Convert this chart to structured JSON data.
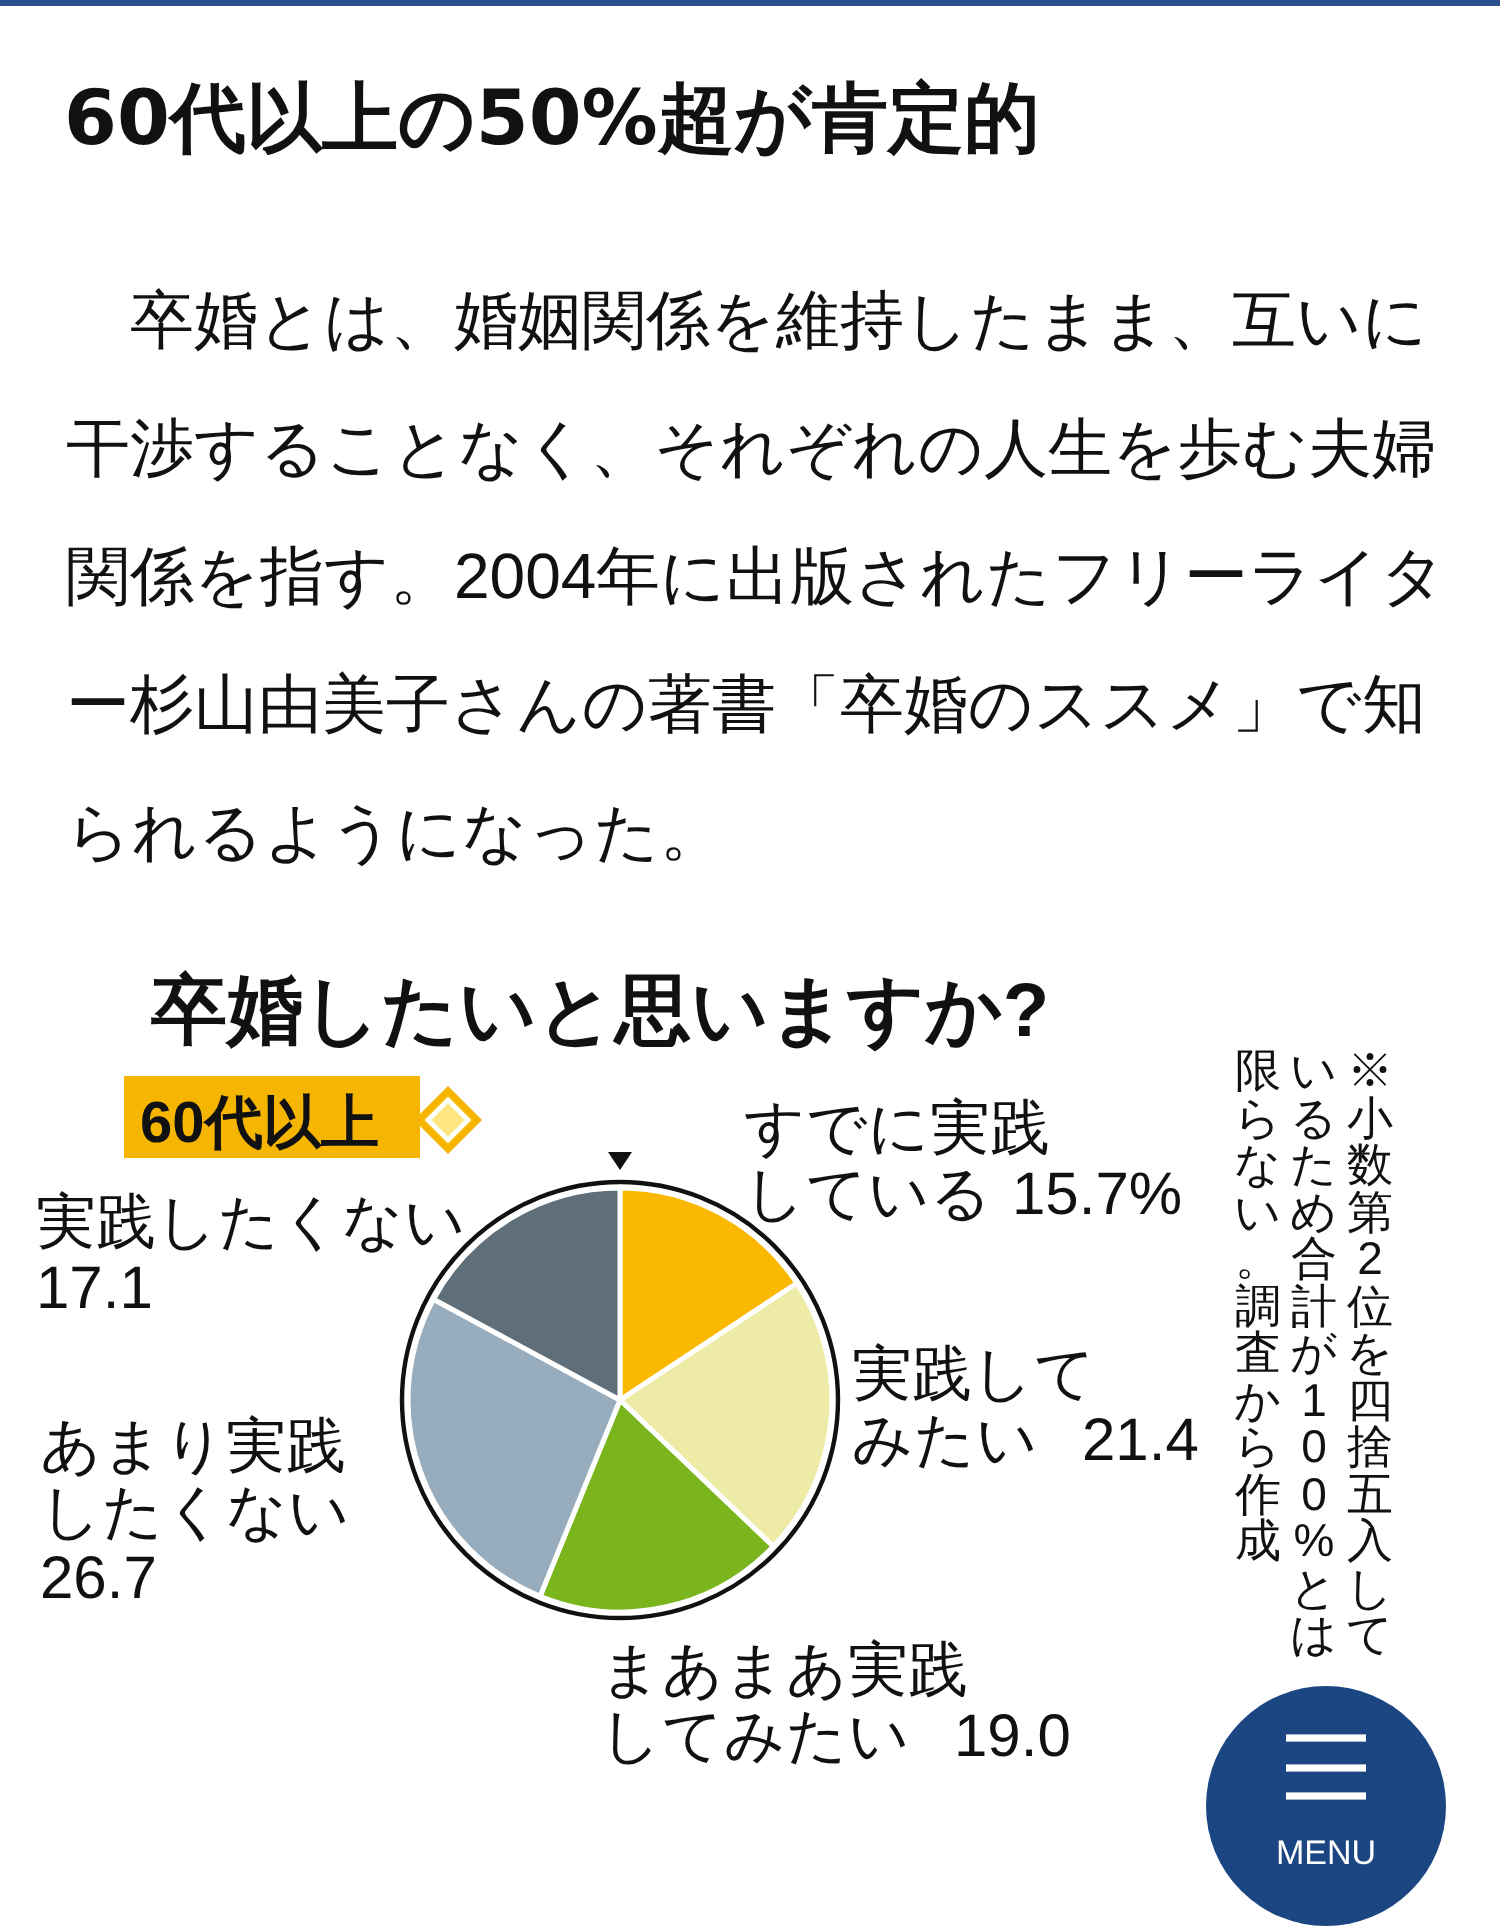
{
  "chart_data": {
    "type": "pie",
    "title": "卒婚したいと思いますか?",
    "subtitle": "60代以上",
    "categories": [
      "すでに実践している",
      "実践してみたい",
      "まあまあ実践してみたい",
      "あまり実践したくない",
      "実践したくない"
    ],
    "values": [
      15.7,
      21.4,
      19.0,
      26.7,
      17.1
    ],
    "value_labels": [
      "15.7%",
      "21.4",
      "19.0",
      "26.7",
      "17.1"
    ],
    "colors": [
      "#fbb800",
      "#eeeba6",
      "#7ab51d",
      "#97adbd",
      "#5e6f7a"
    ],
    "annotations": [
      "60代以上の50%超が肯定的",
      "　卒婚とは、婚姻関係を維持したまま、互いに干渉することなく、それぞれの人生を歩む夫婦関係を指す。2004年に出版されたフリーライター杉山由美子さんの著書「卒婚のススメ」で知られるようになった。",
      "※小数第2位を四捨五入しているため合計が100%とは限らない。調査から作成",
      "MENU"
    ]
  }
}
